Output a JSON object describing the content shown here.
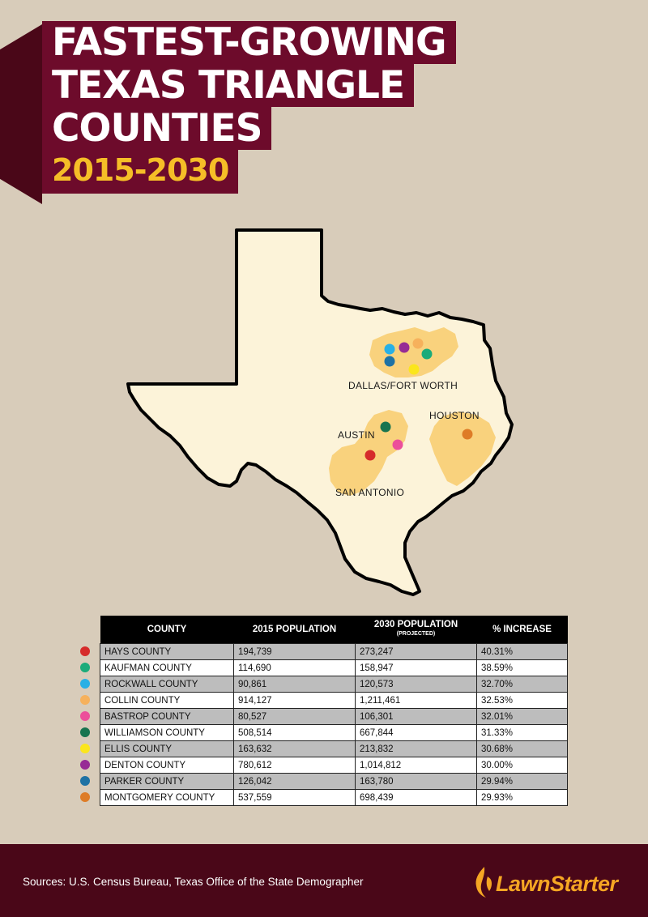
{
  "title": {
    "line1": "FASTEST-GROWING",
    "line2": "TEXAS TRIANGLE",
    "line3": "COUNTIES",
    "years": "2015-2030"
  },
  "map": {
    "labels": {
      "dfw": "DALLAS/FORT WORTH",
      "houston": "HOUSTON",
      "austin": "AUSTIN",
      "san_antonio": "SAN ANTONIO"
    }
  },
  "colors": {
    "title_bg": "#6d0b2b",
    "title_shadow": "#4a0718",
    "accent_yellow": "#f5be27",
    "background": "#d8ccba",
    "state_fill": "#fcf3d9",
    "metro_fill": "#f9d27d",
    "logo_orange": "#f5a623"
  },
  "table": {
    "headers": {
      "county": "COUNTY",
      "pop2015": "2015 POPULATION",
      "pop2030": "2030 POPULATION",
      "pop2030_note": "(PROJECTED)",
      "increase": "% INCREASE"
    },
    "rows": [
      {
        "county": "HAYS COUNTY",
        "pop2015": "194,739",
        "pop2030": "273,247",
        "increase": "40.31%",
        "color": "#d62b2b"
      },
      {
        "county": "KAUFMAN COUNTY",
        "pop2015": "114,690",
        "pop2030": "158,947",
        "increase": "38.59%",
        "color": "#1bab7a"
      },
      {
        "county": "ROCKWALL COUNTY",
        "pop2015": "90,861",
        "pop2030": "120,573",
        "increase": "32.70%",
        "color": "#29b0e5"
      },
      {
        "county": "COLLIN COUNTY",
        "pop2015": "914,127",
        "pop2030": "1,211,461",
        "increase": "32.53%",
        "color": "#f6b15c"
      },
      {
        "county": "BASTROP COUNTY",
        "pop2015": "80,527",
        "pop2030": "106,301",
        "increase": "32.01%",
        "color": "#ec4f9a"
      },
      {
        "county": "WILLIAMSON COUNTY",
        "pop2015": "508,514",
        "pop2030": "667,844",
        "increase": "31.33%",
        "color": "#17744f"
      },
      {
        "county": "ELLIS COUNTY",
        "pop2015": "163,632",
        "pop2030": "213,832",
        "increase": "30.68%",
        "color": "#fbe61c"
      },
      {
        "county": "DENTON COUNTY",
        "pop2015": "780,612",
        "pop2030": "1,014,812",
        "increase": "30.00%",
        "color": "#972b95"
      },
      {
        "county": "PARKER COUNTY",
        "pop2015": "126,042",
        "pop2030": "163,780",
        "increase": "29.94%",
        "color": "#1e72a4"
      },
      {
        "county": "MONTGOMERY COUNTY",
        "pop2015": "537,559",
        "pop2030": "698,439",
        "increase": "29.93%",
        "color": "#de7c27"
      }
    ]
  },
  "footer": {
    "sources": "Sources: U.S. Census Bureau, Texas Office of the State Demographer",
    "logo_text": "LawnStarter",
    "logo_icon": "flame-leaf-icon"
  }
}
